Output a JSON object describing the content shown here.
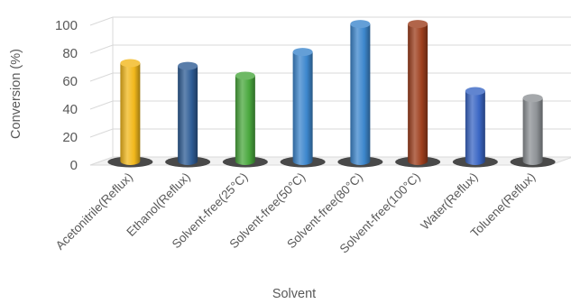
{
  "chart_data": {
    "type": "bar",
    "style": "3d-cylinder",
    "categories": [
      "Acetonitrile(Reflux)",
      "Ethanol(Reflux)",
      "Solvent-free(25°C)",
      "Solvent-free(50°C)",
      "Solvent-free(80°C)",
      "Solvent-free(100°C)",
      "Water(Reflux)",
      "Toluene(Reflux)"
    ],
    "values": [
      70,
      68,
      61,
      78,
      98,
      98,
      50,
      45
    ],
    "colors": [
      "#f2b81c",
      "#2f5d95",
      "#4aa83e",
      "#3d87cd",
      "#3d87cd",
      "#9e3f1d",
      "#3a66c4",
      "#8e9296"
    ],
    "title": "",
    "xlabel": "Solvent",
    "ylabel": "Conversion (%)",
    "ylim": [
      0,
      100
    ],
    "yticks": [
      0,
      20,
      40,
      60,
      80,
      100
    ],
    "grid": true,
    "legend": "none"
  }
}
